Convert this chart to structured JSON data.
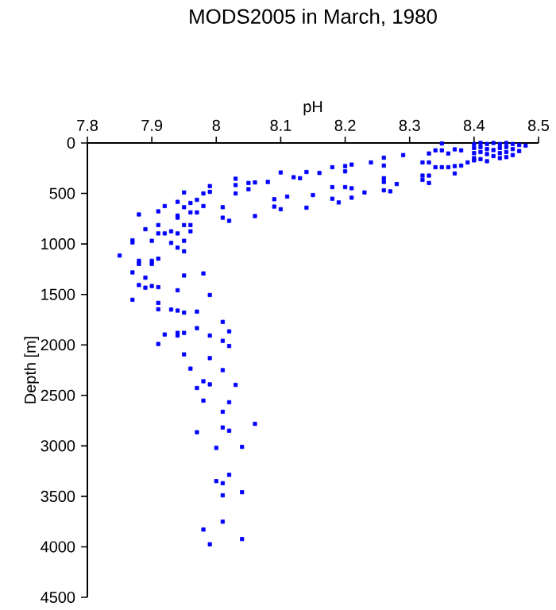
{
  "chart_data": {
    "type": "scatter",
    "title": "MODS2005 in March, 1980",
    "xlabel": "pH",
    "ylabel": "Depth [m]",
    "color": "#0000ff",
    "marker": "square",
    "grid": false,
    "xlim": [
      7.8,
      8.5
    ],
    "xticks": [
      7.8,
      7.9,
      8,
      8.1,
      8.2,
      8.3,
      8.4,
      8.5
    ],
    "ylim": [
      4500,
      0
    ],
    "yticks": [
      0,
      500,
      1000,
      1500,
      2000,
      2500,
      3000,
      3500,
      4000,
      4500
    ],
    "x": [
      8.4,
      8.4,
      8.4,
      8.4,
      8.41,
      8.41,
      8.41,
      8.41,
      8.42,
      8.42,
      8.42,
      8.42,
      8.43,
      8.43,
      8.43,
      8.44,
      8.44,
      8.44,
      8.44,
      8.45,
      8.45,
      8.45,
      8.45,
      8.46,
      8.46,
      8.46,
      8.47,
      8.47,
      8.48,
      8.35,
      8.34,
      8.33,
      8.35,
      8.36,
      8.37,
      8.38,
      8.32,
      8.33,
      8.34,
      8.35,
      8.36,
      8.37,
      8.38,
      8.39,
      8.4,
      8.37,
      8.32,
      8.33,
      8.32,
      8.33,
      8.29,
      8.26,
      8.26,
      8.24,
      8.26,
      8.26,
      8.27,
      8.26,
      8.28,
      8.21,
      8.2,
      8.2,
      8.18,
      8.16,
      8.14,
      8.12,
      8.13,
      8.1,
      8.18,
      8.2,
      8.21,
      8.23,
      8.21,
      8.19,
      8.18,
      8.15,
      8.11,
      8.09,
      8.09,
      8.1,
      8.14,
      8.08,
      8.06,
      8.05,
      8.03,
      8.03,
      8.03,
      8.05,
      8.06,
      8.01,
      8.01,
      8.02,
      7.99,
      7.99,
      7.98,
      7.98,
      7.97,
      7.97,
      7.96,
      7.96,
      7.95,
      7.95,
      7.94,
      7.94,
      7.92,
      7.91,
      7.88,
      7.89,
      7.87,
      7.9,
      7.91,
      7.91,
      7.92,
      7.93,
      7.94,
      7.94,
      7.95,
      7.96,
      7.96,
      7.95,
      7.93,
      7.94,
      7.95,
      7.85,
      7.87,
      7.88,
      7.88,
      7.9,
      7.9,
      7.91,
      7.87,
      7.89,
      7.88,
      7.89,
      7.9,
      7.91,
      7.95,
      7.98,
      7.94,
      7.87,
      7.99,
      7.91,
      7.91,
      7.93,
      7.94,
      7.95,
      7.97,
      8.01,
      8.02,
      7.92,
      7.94,
      7.94,
      7.95,
      7.97,
      7.99,
      7.91,
      8.01,
      8.02,
      7.95,
      7.99,
      7.96,
      8.01,
      7.98,
      7.99,
      7.97,
      8.03,
      7.98,
      8.02,
      8.01,
      8.06,
      8.01,
      8.02,
      7.97,
      8.0,
      8.04,
      8.02,
      8.0,
      8.01,
      8.01,
      8.04,
      8.01,
      7.98,
      8.04,
      7.99
    ],
    "values": [
      10,
      50,
      100,
      150,
      0,
      40,
      90,
      160,
      10,
      60,
      110,
      180,
      0,
      70,
      130,
      10,
      50,
      100,
      150,
      0,
      40,
      90,
      140,
      10,
      60,
      120,
      20,
      80,
      26,
      5,
      73,
      104,
      73,
      104,
      63,
      73,
      193,
      193,
      240,
      240,
      240,
      229,
      224,
      193,
      172,
      302,
      323,
      323,
      365,
      396,
      120,
      146,
      224,
      193,
      349,
      386,
      479,
      469,
      406,
      214,
      229,
      281,
      240,
      297,
      287,
      339,
      349,
      292,
      437,
      437,
      448,
      490,
      542,
      589,
      552,
      516,
      531,
      557,
      630,
      656,
      641,
      386,
      391,
      396,
      354,
      417,
      500,
      458,
      724,
      636,
      740,
      771,
      427,
      484,
      500,
      625,
      563,
      688,
      594,
      688,
      490,
      636,
      583,
      719,
      625,
      677,
      708,
      854,
      964,
      969,
      813,
      896,
      896,
      875,
      896,
      740,
      813,
      875,
      813,
      969,
      990,
      1037,
      1073,
      1115,
      985,
      1167,
      1198,
      1167,
      1198,
      1146,
      1282,
      1334,
      1407,
      1433,
      1417,
      1428,
      1313,
      1292,
      1459,
      1553,
      1506,
      1584,
      1647,
      1650,
      1660,
      1680,
      1670,
      1772,
      1866,
      1897,
      1881,
      1907,
      1881,
      1834,
      1907,
      1991,
      1960,
      2011,
      2094,
      2131,
      2235,
      2250,
      2360,
      2391,
      2427,
      2396,
      2552,
      2568,
      2662,
      2782,
      2818,
      2850,
      2865,
      3020,
      3010,
      3287,
      3349,
      3370,
      3490,
      3459,
      3751,
      3829,
      3923,
      3975
    ]
  }
}
